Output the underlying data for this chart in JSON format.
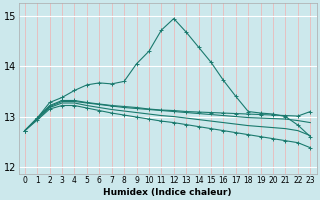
{
  "xlabel": "Humidex (Indice chaleur)",
  "xlim": [
    -0.5,
    23.5
  ],
  "ylim": [
    11.85,
    15.25
  ],
  "yticks": [
    12,
    13,
    14,
    15
  ],
  "xticks": [
    0,
    1,
    2,
    3,
    4,
    5,
    6,
    7,
    8,
    9,
    10,
    11,
    12,
    13,
    14,
    15,
    16,
    17,
    18,
    19,
    20,
    21,
    22,
    23
  ],
  "bg_color": "#cce8ec",
  "grid_color": "#ffffff",
  "line_color": "#1a7a6e",
  "series": [
    {
      "x": [
        0,
        1,
        2,
        3,
        4,
        5,
        6,
        7,
        8,
        9,
        10,
        11,
        12,
        13,
        14,
        15,
        16,
        17,
        18,
        19,
        20,
        21,
        22,
        23
      ],
      "y": [
        12.72,
        12.97,
        13.28,
        13.38,
        13.52,
        13.63,
        13.67,
        13.65,
        13.7,
        14.05,
        14.3,
        14.72,
        14.95,
        14.68,
        14.38,
        14.08,
        13.72,
        13.4,
        13.1,
        13.07,
        13.05,
        13.0,
        12.83,
        12.6
      ],
      "marker": true
    },
    {
      "x": [
        0,
        1,
        2,
        3,
        4,
        5,
        6,
        7,
        8,
        9,
        10,
        11,
        12,
        13,
        14,
        15,
        16,
        17,
        18,
        19,
        20,
        21,
        22,
        23
      ],
      "y": [
        12.72,
        12.97,
        13.22,
        13.32,
        13.32,
        13.28,
        13.25,
        13.22,
        13.2,
        13.18,
        13.15,
        13.13,
        13.12,
        13.1,
        13.09,
        13.08,
        13.07,
        13.06,
        13.05,
        13.04,
        13.03,
        13.02,
        13.01,
        13.1
      ],
      "marker": true
    },
    {
      "x": [
        0,
        1,
        2,
        3,
        4,
        5,
        6,
        7,
        8,
        9,
        10,
        11,
        12,
        13,
        14,
        15,
        16,
        17,
        18,
        19,
        20,
        21,
        22,
        23
      ],
      "y": [
        12.72,
        12.97,
        13.2,
        13.3,
        13.3,
        13.27,
        13.24,
        13.21,
        13.18,
        13.16,
        13.14,
        13.12,
        13.1,
        13.08,
        13.06,
        13.04,
        13.02,
        13.0,
        12.98,
        12.97,
        12.96,
        12.95,
        12.92,
        12.88
      ],
      "marker": false
    },
    {
      "x": [
        0,
        1,
        2,
        3,
        4,
        5,
        6,
        7,
        8,
        9,
        10,
        11,
        12,
        13,
        14,
        15,
        16,
        17,
        18,
        19,
        20,
        21,
        22,
        23
      ],
      "y": [
        12.72,
        12.95,
        13.18,
        13.27,
        13.27,
        13.22,
        13.18,
        13.14,
        13.11,
        13.08,
        13.05,
        13.02,
        13.0,
        12.97,
        12.94,
        12.91,
        12.88,
        12.85,
        12.82,
        12.8,
        12.78,
        12.76,
        12.72,
        12.62
      ],
      "marker": false
    },
    {
      "x": [
        0,
        1,
        2,
        3,
        4,
        5,
        6,
        7,
        8,
        9,
        10,
        11,
        12,
        13,
        14,
        15,
        16,
        17,
        18,
        19,
        20,
        21,
        22,
        23
      ],
      "y": [
        12.72,
        12.93,
        13.15,
        13.22,
        13.22,
        13.17,
        13.12,
        13.07,
        13.03,
        12.99,
        12.95,
        12.91,
        12.88,
        12.84,
        12.8,
        12.76,
        12.72,
        12.68,
        12.64,
        12.6,
        12.56,
        12.52,
        12.48,
        12.38
      ],
      "marker": true
    }
  ]
}
